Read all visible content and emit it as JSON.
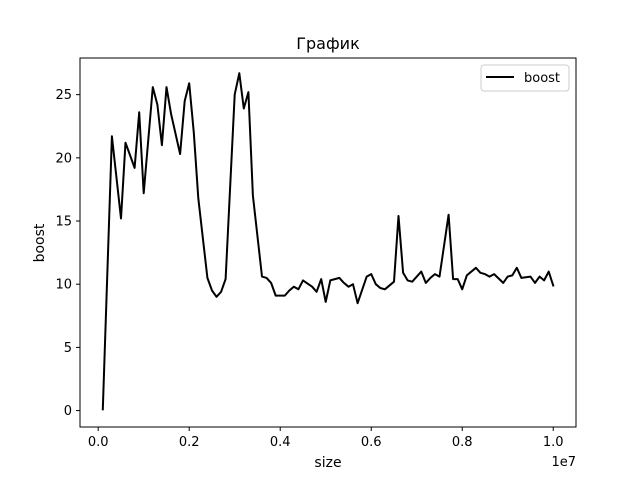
{
  "chart_data": {
    "type": "line",
    "title": "График",
    "xlabel": "size",
    "ylabel": "boost",
    "x_offset_label": "1e7",
    "xlim": [
      -0.04,
      1.05
    ],
    "ylim": [
      -1.3,
      27.9
    ],
    "x_ticks": [
      0.0,
      0.2,
      0.4,
      0.6,
      0.8,
      1.0
    ],
    "x_tick_labels": [
      "0.0",
      "0.2",
      "0.4",
      "0.6",
      "0.8",
      "1.0"
    ],
    "y_ticks": [
      0,
      5,
      10,
      15,
      20,
      25
    ],
    "y_tick_labels": [
      "0",
      "5",
      "10",
      "15",
      "20",
      "25"
    ],
    "grid": false,
    "legend_position": "top-right",
    "series": [
      {
        "name": "boost",
        "color": "#000000",
        "x": [
          0.01,
          0.03,
          0.05,
          0.06,
          0.08,
          0.09,
          0.1,
          0.12,
          0.13,
          0.14,
          0.15,
          0.16,
          0.18,
          0.19,
          0.2,
          0.21,
          0.22,
          0.24,
          0.25,
          0.26,
          0.27,
          0.28,
          0.3,
          0.31,
          0.32,
          0.33,
          0.34,
          0.36,
          0.37,
          0.38,
          0.39,
          0.41,
          0.42,
          0.43,
          0.44,
          0.45,
          0.47,
          0.48,
          0.49,
          0.5,
          0.51,
          0.53,
          0.54,
          0.55,
          0.56,
          0.57,
          0.59,
          0.6,
          0.61,
          0.62,
          0.63,
          0.65,
          0.66,
          0.67,
          0.68,
          0.69,
          0.71,
          0.72,
          0.73,
          0.74,
          0.75,
          0.77,
          0.78,
          0.79,
          0.8,
          0.81,
          0.83,
          0.84,
          0.85,
          0.86,
          0.87,
          0.89,
          0.9,
          0.91,
          0.92,
          0.93,
          0.95,
          0.96,
          0.97,
          0.98,
          0.99,
          1.0
        ],
        "values": [
          0.1,
          21.7,
          15.2,
          21.2,
          19.2,
          23.6,
          17.2,
          25.6,
          24.2,
          21.0,
          25.6,
          23.5,
          20.3,
          24.5,
          25.9,
          22.0,
          16.8,
          10.5,
          9.5,
          9.0,
          9.4,
          10.4,
          25.0,
          26.7,
          23.9,
          25.2,
          17.0,
          10.6,
          10.5,
          10.1,
          9.1,
          9.1,
          9.5,
          9.8,
          9.6,
          10.3,
          9.8,
          9.4,
          10.4,
          8.6,
          10.3,
          10.5,
          10.1,
          9.8,
          10.0,
          8.5,
          10.6,
          10.8,
          10.0,
          9.7,
          9.6,
          10.2,
          15.4,
          10.9,
          10.3,
          10.2,
          11.0,
          10.1,
          10.5,
          10.8,
          10.6,
          15.5,
          10.4,
          10.4,
          9.6,
          10.7,
          11.3,
          10.9,
          10.8,
          10.6,
          10.8,
          10.1,
          10.6,
          10.7,
          11.3,
          10.5,
          10.6,
          10.1,
          10.6,
          10.3,
          11.0,
          9.9
        ]
      }
    ]
  }
}
